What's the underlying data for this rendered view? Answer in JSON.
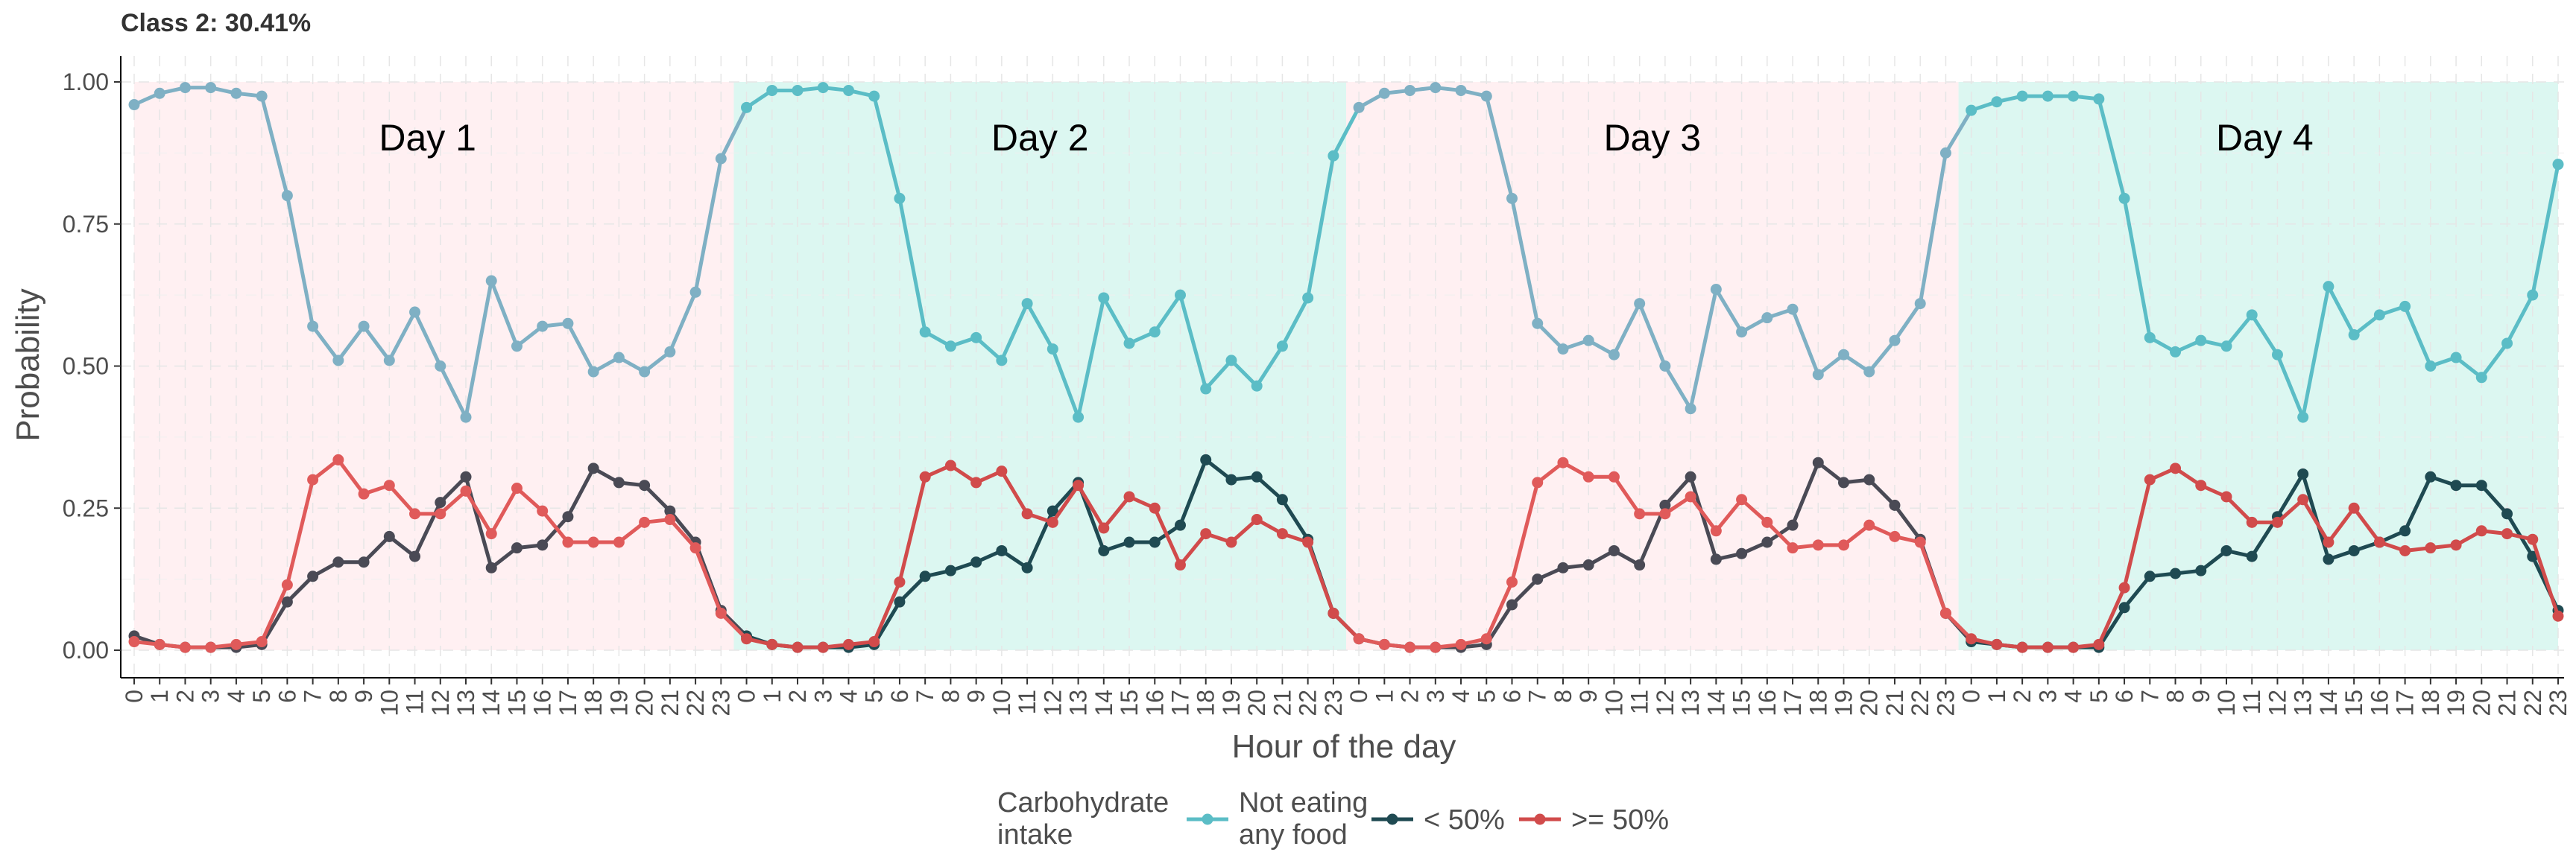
{
  "chart_data": {
    "type": "line",
    "title": "Class 2: 30.41%",
    "xlabel": "Hour of the day",
    "ylabel": "Probability",
    "ylim": [
      0,
      1
    ],
    "yticks": [
      "0.00",
      "0.25",
      "0.50",
      "0.75",
      "1.00"
    ],
    "grid": true,
    "legend_position": "bottom",
    "legend_title": [
      "Carbohydrate",
      "intake"
    ],
    "x_tick_labels": [
      "0",
      "1",
      "2",
      "3",
      "4",
      "5",
      "6",
      "7",
      "8",
      "9",
      "10",
      "11",
      "12",
      "13",
      "14",
      "15",
      "16",
      "17",
      "18",
      "19",
      "20",
      "21",
      "22",
      "23"
    ],
    "days": [
      {
        "label": "Day 1",
        "bg": "#fff0f2"
      },
      {
        "label": "Day 2",
        "bg": "#dcf7f1"
      },
      {
        "label": "Day 3",
        "bg": "#fff0f2"
      },
      {
        "label": "Day 4",
        "bg": "#dcf7f1"
      }
    ],
    "series": [
      {
        "name": "Not eating\nany food",
        "colors": [
          "#7fb0c4",
          "#5bbdc6",
          "#7fb0c4",
          "#5bbdc6"
        ],
        "values": [
          0.96,
          0.98,
          0.99,
          0.99,
          0.98,
          0.975,
          0.8,
          0.57,
          0.51,
          0.57,
          0.51,
          0.595,
          0.5,
          0.41,
          0.65,
          0.535,
          0.57,
          0.575,
          0.49,
          0.515,
          0.49,
          0.525,
          0.63,
          0.865,
          0.955,
          0.985,
          0.985,
          0.99,
          0.985,
          0.975,
          0.795,
          0.56,
          0.535,
          0.55,
          0.51,
          0.61,
          0.53,
          0.41,
          0.62,
          0.54,
          0.56,
          0.625,
          0.46,
          0.51,
          0.465,
          0.535,
          0.62,
          0.87,
          0.955,
          0.98,
          0.985,
          0.99,
          0.985,
          0.975,
          0.795,
          0.575,
          0.53,
          0.545,
          0.52,
          0.61,
          0.5,
          0.425,
          0.635,
          0.56,
          0.585,
          0.6,
          0.485,
          0.52,
          0.49,
          0.545,
          0.61,
          0.875,
          0.95,
          0.965,
          0.975,
          0.975,
          0.975,
          0.97,
          0.795,
          0.55,
          0.525,
          0.545,
          0.535,
          0.59,
          0.52,
          0.41,
          0.64,
          0.555,
          0.59,
          0.605,
          0.5,
          0.515,
          0.48,
          0.54,
          0.625,
          0.855
        ]
      },
      {
        "name": "< 50%",
        "colors": [
          "#4a4a55",
          "#1f4a52",
          "#4a4a55",
          "#1f4a52"
        ],
        "values": [
          0.025,
          0.01,
          0.005,
          0.005,
          0.005,
          0.01,
          0.085,
          0.13,
          0.155,
          0.155,
          0.2,
          0.165,
          0.26,
          0.305,
          0.145,
          0.18,
          0.185,
          0.235,
          0.32,
          0.295,
          0.29,
          0.245,
          0.19,
          0.07,
          0.025,
          0.01,
          0.005,
          0.005,
          0.005,
          0.01,
          0.085,
          0.13,
          0.14,
          0.155,
          0.175,
          0.145,
          0.245,
          0.295,
          0.175,
          0.19,
          0.19,
          0.22,
          0.335,
          0.3,
          0.305,
          0.265,
          0.195,
          0.065,
          0.02,
          0.01,
          0.005,
          0.005,
          0.005,
          0.01,
          0.08,
          0.125,
          0.145,
          0.15,
          0.175,
          0.15,
          0.255,
          0.305,
          0.16,
          0.17,
          0.19,
          0.22,
          0.33,
          0.295,
          0.3,
          0.255,
          0.195,
          0.065,
          0.015,
          0.01,
          0.005,
          0.005,
          0.005,
          0.005,
          0.075,
          0.13,
          0.135,
          0.14,
          0.175,
          0.165,
          0.235,
          0.31,
          0.16,
          0.175,
          0.19,
          0.21,
          0.305,
          0.29,
          0.29,
          0.24,
          0.165,
          0.07
        ]
      },
      {
        "name": ">= 50%",
        "colors": [
          "#e05a5a",
          "#d14b4b",
          "#e05a5a",
          "#d14b4b"
        ],
        "values": [
          0.015,
          0.01,
          0.005,
          0.005,
          0.01,
          0.015,
          0.115,
          0.3,
          0.335,
          0.275,
          0.29,
          0.24,
          0.24,
          0.28,
          0.205,
          0.285,
          0.245,
          0.19,
          0.19,
          0.19,
          0.225,
          0.23,
          0.18,
          0.065,
          0.02,
          0.01,
          0.005,
          0.005,
          0.01,
          0.015,
          0.12,
          0.305,
          0.325,
          0.295,
          0.315,
          0.24,
          0.225,
          0.29,
          0.215,
          0.27,
          0.25,
          0.15,
          0.205,
          0.19,
          0.23,
          0.205,
          0.19,
          0.065,
          0.02,
          0.01,
          0.005,
          0.005,
          0.01,
          0.02,
          0.12,
          0.295,
          0.33,
          0.305,
          0.305,
          0.24,
          0.24,
          0.27,
          0.21,
          0.265,
          0.225,
          0.18,
          0.185,
          0.185,
          0.22,
          0.2,
          0.19,
          0.065,
          0.02,
          0.01,
          0.005,
          0.005,
          0.005,
          0.01,
          0.11,
          0.3,
          0.32,
          0.29,
          0.27,
          0.225,
          0.225,
          0.265,
          0.19,
          0.25,
          0.19,
          0.175,
          0.18,
          0.185,
          0.21,
          0.205,
          0.195,
          0.06
        ]
      }
    ]
  }
}
